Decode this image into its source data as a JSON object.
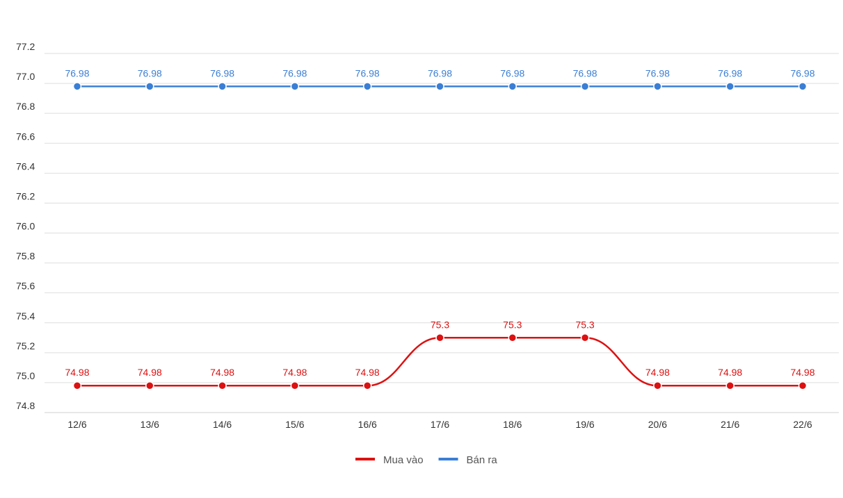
{
  "chart_data": {
    "type": "line",
    "title": "",
    "xlabel": "",
    "ylabel": "",
    "categories": [
      "12/6",
      "13/6",
      "14/6",
      "15/6",
      "16/6",
      "17/6",
      "18/6",
      "19/6",
      "20/6",
      "21/6",
      "22/6"
    ],
    "y_ticks": [
      "74.8",
      "75.0",
      "75.2",
      "75.4",
      "75.6",
      "75.8",
      "76.0",
      "76.2",
      "76.4",
      "76.6",
      "76.8",
      "77.0",
      "77.2"
    ],
    "ylim": [
      74.8,
      77.2
    ],
    "grid": true,
    "legend_position": "bottom-center",
    "series": [
      {
        "name": "Mua vào",
        "color": "#dd1111",
        "values": [
          74.98,
          74.98,
          74.98,
          74.98,
          74.98,
          75.3,
          75.3,
          75.3,
          74.98,
          74.98,
          74.98
        ],
        "labels": [
          "74.98",
          "74.98",
          "74.98",
          "74.98",
          "74.98",
          "75.3",
          "75.3",
          "75.3",
          "74.98",
          "74.98",
          "74.98"
        ]
      },
      {
        "name": "Bán ra",
        "color": "#3a7fd5",
        "values": [
          76.98,
          76.98,
          76.98,
          76.98,
          76.98,
          76.98,
          76.98,
          76.98,
          76.98,
          76.98,
          76.98
        ],
        "labels": [
          "76.98",
          "76.98",
          "76.98",
          "76.98",
          "76.98",
          "76.98",
          "76.98",
          "76.98",
          "76.98",
          "76.98",
          "76.98"
        ]
      }
    ]
  }
}
